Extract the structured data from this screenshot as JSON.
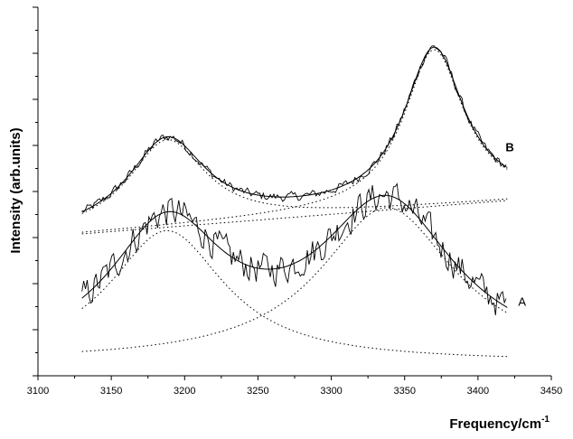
{
  "chart_data": {
    "type": "line",
    "title": "",
    "xlabel": "Frequency/cm",
    "xlabel_superscript": "-1",
    "ylabel": "Intensity (arb.units)",
    "xlim": [
      3100,
      3450
    ],
    "ylim": [
      0,
      8
    ],
    "x_ticks": [
      "3100",
      "3150",
      "3200",
      "3250",
      "3300",
      "3350",
      "3400",
      "3450"
    ],
    "y_tick_labels_shown": false,
    "grid": false,
    "legend": "none",
    "x_range_data": [
      3130,
      3420
    ],
    "series": [
      {
        "name": "B",
        "label_bold": true,
        "components": {
          "baseline": [
            3.08,
            0.0025
          ],
          "peaks": [
            {
              "center": 3188,
              "height": 1.9,
              "width": 32
            },
            {
              "center": 3370,
              "height": 3.4,
              "width": 25
            }
          ]
        },
        "noise_amplitude": 0.09
      },
      {
        "name": "A",
        "label_bold": false,
        "components": {
          "baseline": [
            0.3,
            0.0
          ],
          "peaks": [
            {
              "center": 3188,
              "height": 2.85,
              "width": 48
            },
            {
              "center": 3338,
              "height": 3.35,
              "width": 56
            }
          ]
        },
        "noise_amplitude": 0.32
      }
    ]
  }
}
